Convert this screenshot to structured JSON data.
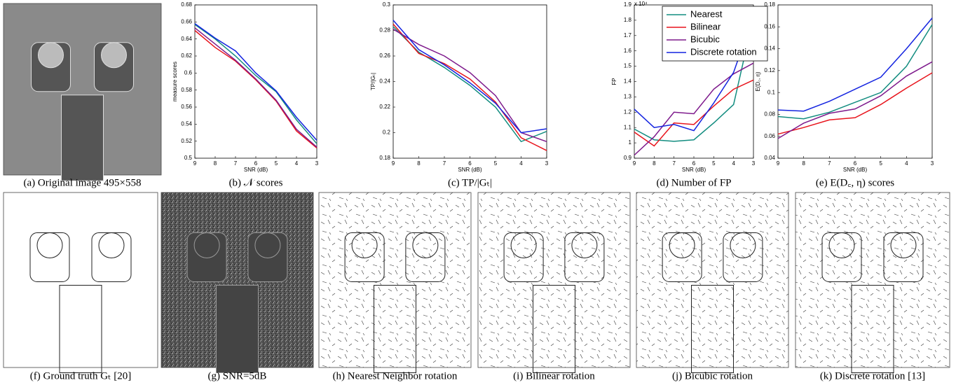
{
  "chart_data": [
    {
      "type": "line",
      "caption": "(b) 𝒩 scores",
      "xlabel": "SNR (dB)",
      "ylabel": "measure scores",
      "x": [
        9,
        8,
        7,
        6,
        5,
        4,
        3
      ],
      "xlim": [
        9,
        3
      ],
      "xticks": [
        9,
        8,
        7,
        6,
        5,
        4,
        3
      ],
      "ylim": [
        0.5,
        0.68
      ],
      "yticks": [
        0.5,
        0.52,
        0.54,
        0.56,
        0.58,
        0.6,
        0.62,
        0.64,
        0.66,
        0.68
      ],
      "series": [
        {
          "color": "#138d80",
          "values": [
            0.657,
            0.64,
            0.62,
            0.597,
            0.578,
            0.545,
            0.517
          ]
        },
        {
          "color": "#e8141c",
          "values": [
            0.65,
            0.63,
            0.614,
            0.592,
            0.567,
            0.532,
            0.512
          ]
        },
        {
          "color": "#7e1a8c",
          "values": [
            0.653,
            0.634,
            0.615,
            0.593,
            0.568,
            0.534,
            0.513
          ]
        },
        {
          "color": "#1424e0",
          "values": [
            0.658,
            0.641,
            0.626,
            0.6,
            0.579,
            0.548,
            0.521
          ]
        }
      ]
    },
    {
      "type": "line",
      "caption": "(c) TP/|Gₜ|",
      "xlabel": "SNR (dB)",
      "ylabel": "TP/|Gₜ|",
      "x": [
        9,
        8,
        7,
        6,
        5,
        4,
        3
      ],
      "xlim": [
        9,
        3
      ],
      "xticks": [
        9,
        8,
        7,
        6,
        5,
        4,
        3
      ],
      "ylim": [
        0.18,
        0.3
      ],
      "yticks": [
        0.18,
        0.2,
        0.22,
        0.24,
        0.26,
        0.28,
        0.3
      ],
      "series": [
        {
          "color": "#138d80",
          "values": [
            0.283,
            0.263,
            0.251,
            0.237,
            0.22,
            0.193,
            0.201
          ]
        },
        {
          "color": "#e8141c",
          "values": [
            0.285,
            0.262,
            0.254,
            0.242,
            0.224,
            0.196,
            0.186
          ]
        },
        {
          "color": "#7e1a8c",
          "values": [
            0.281,
            0.269,
            0.26,
            0.247,
            0.229,
            0.2,
            0.193
          ]
        },
        {
          "color": "#1424e0",
          "values": [
            0.288,
            0.265,
            0.253,
            0.239,
            0.223,
            0.2,
            0.203
          ]
        }
      ]
    },
    {
      "type": "line",
      "caption": "(d) Number of FP",
      "xlabel": "SNR (dB)",
      "ylabel": "FP",
      "annotation": "x 10⁴",
      "x": [
        9,
        8,
        7,
        6,
        5,
        4,
        3
      ],
      "xlim": [
        9,
        3
      ],
      "xticks": [
        9,
        8,
        7,
        6,
        5,
        4,
        3
      ],
      "ylim": [
        0.9,
        1.9
      ],
      "yticks": [
        0.9,
        1,
        1.1,
        1.2,
        1.3,
        1.4,
        1.5,
        1.6,
        1.7,
        1.8,
        1.9
      ],
      "legend": "upper center",
      "series": [
        {
          "name": "Nearest",
          "color": "#138d80",
          "values": [
            1.09,
            1.02,
            1.01,
            1.02,
            1.13,
            1.25,
            1.82
          ]
        },
        {
          "name": "Bilinear",
          "color": "#e8141c",
          "values": [
            1.07,
            0.98,
            1.13,
            1.12,
            1.24,
            1.35,
            1.41
          ]
        },
        {
          "name": "Bicubic",
          "color": "#7e1a8c",
          "values": [
            0.92,
            1.04,
            1.2,
            1.19,
            1.35,
            1.45,
            1.52
          ]
        },
        {
          "name": "Discrete rotation",
          "color": "#1424e0",
          "values": [
            1.22,
            1.1,
            1.12,
            1.08,
            1.26,
            1.46,
            1.83
          ]
        }
      ]
    },
    {
      "type": "line",
      "caption": "(e) E(D꜀, η) scores",
      "xlabel": "SNR (dB)",
      "ylabel": "E(D꜀, η)",
      "x": [
        9,
        8,
        7,
        6,
        5,
        4,
        3
      ],
      "xlim": [
        9,
        3
      ],
      "xticks": [
        9,
        8,
        7,
        6,
        5,
        4,
        3
      ],
      "ylim": [
        0.04,
        0.18
      ],
      "yticks": [
        0.04,
        0.06,
        0.08,
        0.1,
        0.12,
        0.14,
        0.16,
        0.18
      ],
      "series": [
        {
          "color": "#138d80",
          "values": [
            0.078,
            0.076,
            0.082,
            0.091,
            0.1,
            0.124,
            0.162
          ]
        },
        {
          "color": "#e8141c",
          "values": [
            0.062,
            0.068,
            0.075,
            0.077,
            0.089,
            0.104,
            0.118
          ]
        },
        {
          "color": "#7e1a8c",
          "values": [
            0.058,
            0.072,
            0.081,
            0.085,
            0.097,
            0.115,
            0.128
          ]
        },
        {
          "color": "#1424e0",
          "values": [
            0.084,
            0.083,
            0.092,
            0.103,
            0.114,
            0.14,
            0.168
          ]
        }
      ]
    }
  ],
  "images": [
    {
      "caption": "(a) Original image 495×558"
    },
    {
      "caption": "(f) Ground truth Gₜ [20]"
    },
    {
      "caption": "(g) SNR=5dB"
    },
    {
      "caption": "(h) Nearest Neighbor rotation"
    },
    {
      "caption": "(i) Bilinear rotation"
    },
    {
      "caption": "(j) Bicubic rotation"
    },
    {
      "caption": "(k) Discrete rotation [13]"
    }
  ]
}
